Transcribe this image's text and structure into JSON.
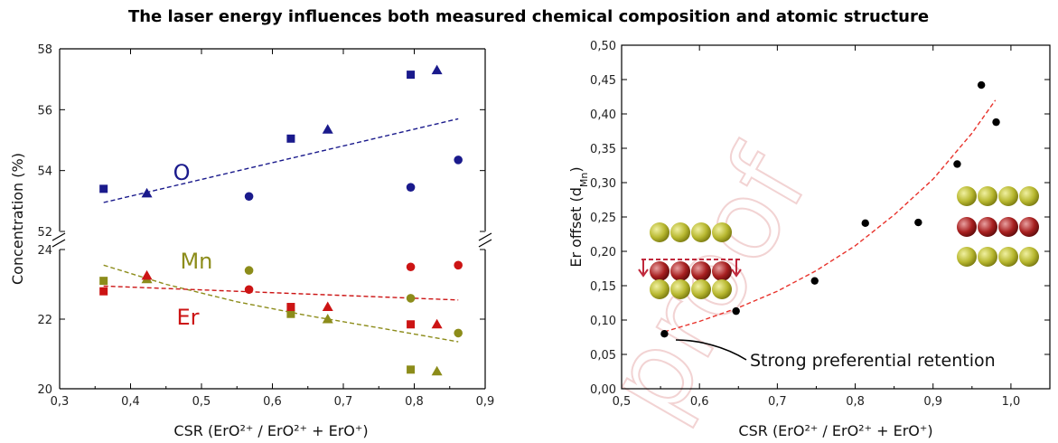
{
  "title": "The laser energy influences both measured chemical composition and atomic structure",
  "watermark": "proof",
  "chart_data": [
    {
      "type": "scatter",
      "xlabel": "CSR (ErO²⁺ / ErO²⁺ + ErO⁺)",
      "ylabel": "Concentration (%)",
      "xlim": [
        0.3,
        0.9
      ],
      "xticks": [
        "0,3",
        "0,4",
        "0,5",
        "0,6",
        "0,7",
        "0,8",
        "0,9"
      ],
      "ylim_upper": [
        52,
        58
      ],
      "yticks_upper": [
        "52",
        "54",
        "56",
        "58"
      ],
      "ylim_lower": [
        20,
        24
      ],
      "yticks_lower": [
        "20",
        "22",
        "24"
      ],
      "axis_break": true,
      "colors": {
        "O": "#1a1a8c",
        "Mn": "#8c8c1a",
        "Er": "#cc1414"
      },
      "series": [
        {
          "name": "O",
          "panel": "upper",
          "color": "#1a1a8c",
          "points": [
            {
              "x": 0.362,
              "y": 53.4,
              "marker": "square"
            },
            {
              "x": 0.423,
              "y": 53.25,
              "marker": "triangle"
            },
            {
              "x": 0.567,
              "y": 53.15,
              "marker": "circle"
            },
            {
              "x": 0.626,
              "y": 55.05,
              "marker": "square"
            },
            {
              "x": 0.678,
              "y": 55.35,
              "marker": "triangle"
            },
            {
              "x": 0.795,
              "y": 57.15,
              "marker": "square"
            },
            {
              "x": 0.795,
              "y": 53.45,
              "marker": "circle"
            },
            {
              "x": 0.832,
              "y": 57.3,
              "marker": "triangle"
            },
            {
              "x": 0.862,
              "y": 54.35,
              "marker": "circle"
            }
          ],
          "fit": {
            "x": [
              0.362,
              0.862
            ],
            "y": [
              52.95,
              55.7
            ]
          }
        },
        {
          "name": "Mn",
          "panel": "lower",
          "color": "#8c8c1a",
          "points": [
            {
              "x": 0.362,
              "y": 23.1,
              "marker": "square"
            },
            {
              "x": 0.423,
              "y": 23.15,
              "marker": "triangle"
            },
            {
              "x": 0.567,
              "y": 23.4,
              "marker": "circle"
            },
            {
              "x": 0.626,
              "y": 22.15,
              "marker": "square"
            },
            {
              "x": 0.678,
              "y": 22.0,
              "marker": "triangle"
            },
            {
              "x": 0.795,
              "y": 22.6,
              "marker": "circle"
            },
            {
              "x": 0.795,
              "y": 20.55,
              "marker": "square"
            },
            {
              "x": 0.832,
              "y": 20.5,
              "marker": "triangle"
            },
            {
              "x": 0.862,
              "y": 21.6,
              "marker": "circle"
            }
          ],
          "fit": {
            "x": [
              0.362,
              0.45,
              0.55,
              0.65,
              0.75,
              0.862
            ],
            "y": [
              23.55,
              23.0,
              22.5,
              22.1,
              21.75,
              21.35
            ]
          }
        },
        {
          "name": "Er",
          "panel": "lower",
          "color": "#cc1414",
          "points": [
            {
              "x": 0.362,
              "y": 22.8,
              "marker": "square"
            },
            {
              "x": 0.423,
              "y": 23.25,
              "marker": "triangle"
            },
            {
              "x": 0.567,
              "y": 22.85,
              "marker": "circle"
            },
            {
              "x": 0.626,
              "y": 22.35,
              "marker": "square"
            },
            {
              "x": 0.678,
              "y": 22.35,
              "marker": "triangle"
            },
            {
              "x": 0.795,
              "y": 23.5,
              "marker": "circle"
            },
            {
              "x": 0.795,
              "y": 21.85,
              "marker": "square"
            },
            {
              "x": 0.832,
              "y": 21.85,
              "marker": "triangle"
            },
            {
              "x": 0.862,
              "y": 23.55,
              "marker": "circle"
            }
          ],
          "fit": {
            "x": [
              0.362,
              0.862
            ],
            "y": [
              22.95,
              22.55
            ]
          }
        }
      ],
      "series_labels": [
        {
          "text": "O",
          "x": 0.46,
          "y": 53.7,
          "panel": "upper",
          "color": "#1a1a8c"
        },
        {
          "text": "Mn",
          "x": 0.47,
          "y": 23.45,
          "panel": "lower",
          "color": "#8c8c1a"
        },
        {
          "text": "Er",
          "x": 0.465,
          "y": 21.85,
          "panel": "lower",
          "color": "#cc1414"
        }
      ]
    },
    {
      "type": "scatter",
      "xlabel": "CSR (ErO²⁺ / ErO²⁺ + ErO⁺)",
      "ylabel": "Er offset (d",
      "ylabel_sub": "Mn",
      "ylabel_end": ")",
      "xlim": [
        0.5,
        1.05
      ],
      "xticks": [
        "0,5",
        "0,6",
        "0,7",
        "0,8",
        "0,9",
        "1,0"
      ],
      "ylim": [
        0,
        0.5
      ],
      "yticks": [
        "0,00",
        "0,05",
        "0,10",
        "0,15",
        "0,20",
        "0,25",
        "0,30",
        "0,35",
        "0,40",
        "0,45",
        "0,50"
      ],
      "points": [
        {
          "x": 0.555,
          "y": 0.08
        },
        {
          "x": 0.647,
          "y": 0.113
        },
        {
          "x": 0.748,
          "y": 0.157
        },
        {
          "x": 0.813,
          "y": 0.241
        },
        {
          "x": 0.881,
          "y": 0.242
        },
        {
          "x": 0.931,
          "y": 0.327
        },
        {
          "x": 0.962,
          "y": 0.442
        },
        {
          "x": 0.981,
          "y": 0.388
        }
      ],
      "fit": {
        "x": [
          0.555,
          0.6,
          0.65,
          0.7,
          0.75,
          0.8,
          0.85,
          0.9,
          0.95,
          0.98
        ],
        "y": [
          0.083,
          0.098,
          0.118,
          0.142,
          0.172,
          0.208,
          0.253,
          0.305,
          0.372,
          0.42
        ]
      },
      "annotation": "Strong preferential retention"
    }
  ]
}
